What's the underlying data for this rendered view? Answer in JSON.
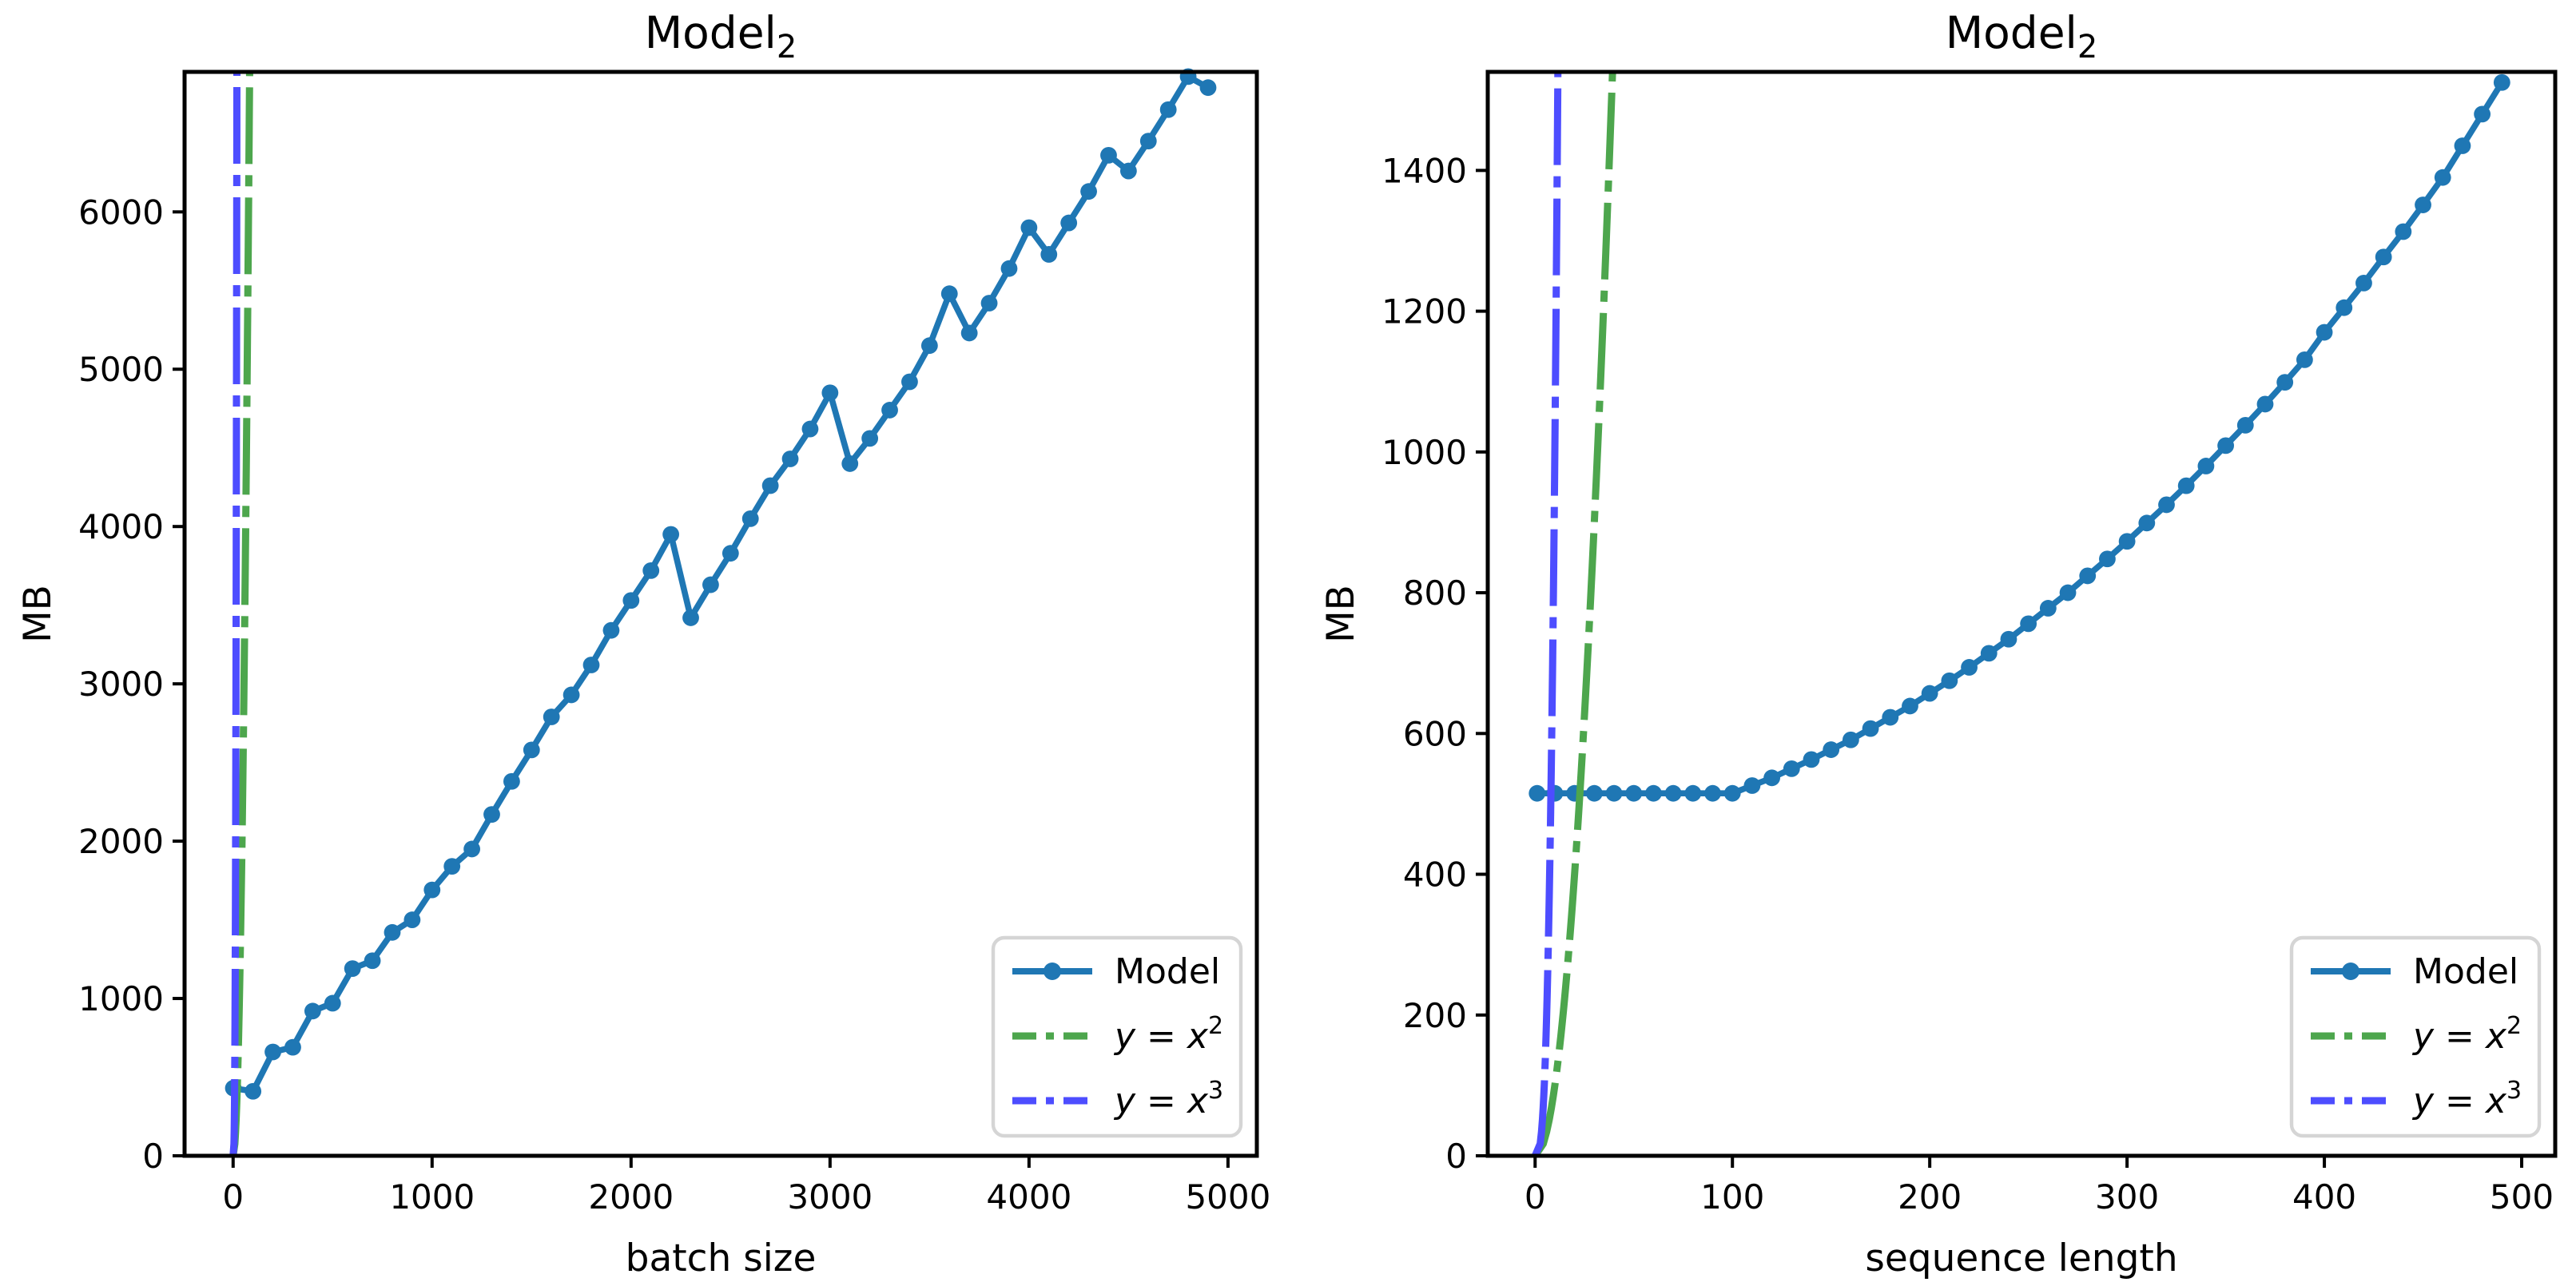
{
  "figure": {
    "background": "#ffffff",
    "description": "Two line charts of memory usage for Model 2"
  },
  "colors": {
    "model": "#1f77b4",
    "quadratic": "#4DA64D",
    "cubic": "#4D4DFF",
    "axis": "#000000",
    "legend_border": "#d5d5d5",
    "legend_bg": "#ffffff"
  },
  "chart_data": [
    {
      "type": "line",
      "title": {
        "main": "Model",
        "sub": "2"
      },
      "xlabel": "batch size",
      "ylabel": "MB",
      "xlim": [
        -244,
        5145
      ],
      "ylim": [
        0,
        6890
      ],
      "xticks": [
        0,
        1000,
        2000,
        3000,
        4000,
        5000
      ],
      "yticks": [
        0,
        1000,
        2000,
        3000,
        4000,
        5000,
        6000
      ],
      "grid": false,
      "legend_position": "lower right",
      "series": [
        {
          "name": "Model",
          "color_key": "model",
          "style": "solid-markers",
          "x": [
            1,
            100,
            200,
            300,
            400,
            500,
            600,
            700,
            800,
            900,
            1000,
            1100,
            1200,
            1300,
            1400,
            1500,
            1600,
            1700,
            1800,
            1900,
            2000,
            2100,
            2200,
            2300,
            2400,
            2500,
            2600,
            2700,
            2800,
            2900,
            3000,
            3100,
            3200,
            3300,
            3400,
            3500,
            3600,
            3700,
            3800,
            3900,
            4000,
            4100,
            4200,
            4300,
            4400,
            4500,
            4600,
            4700,
            4800,
            4900
          ],
          "y": [
            430,
            410,
            660,
            690,
            920,
            970,
            1190,
            1240,
            1420,
            1500,
            1690,
            1840,
            1950,
            2170,
            2380,
            2580,
            2790,
            2930,
            3120,
            3340,
            3530,
            3720,
            3950,
            3420,
            3630,
            3830,
            4050,
            4260,
            4430,
            4620,
            4850,
            4400,
            4560,
            4740,
            4920,
            5150,
            5480,
            5230,
            5420,
            5640,
            5900,
            5730,
            5930,
            6130,
            6360,
            6260,
            6450,
            6650,
            6860,
            6790
          ]
        },
        {
          "name": "y = x^2",
          "color_key": "quadratic",
          "style": "dashdot",
          "formula": "x^2"
        },
        {
          "name": "y = x^3",
          "color_key": "cubic",
          "style": "dashdot",
          "formula": "x^3"
        }
      ],
      "legend": {
        "entries": [
          {
            "label": "Model",
            "math": false,
            "color_key": "model",
            "style": "solid-markers"
          },
          {
            "label": "y = x²",
            "math": true,
            "lhs": "y",
            "eq": " = ",
            "rhs": "x",
            "exp": "2",
            "color_key": "quadratic",
            "style": "dashdot"
          },
          {
            "label": "y = x³",
            "math": true,
            "lhs": "y",
            "eq": " = ",
            "rhs": "x",
            "exp": "3",
            "color_key": "cubic",
            "style": "dashdot"
          }
        ]
      }
    },
    {
      "type": "line",
      "title": {
        "main": "Model",
        "sub": "2"
      },
      "xlabel": "sequence length",
      "ylabel": "MB",
      "xlim": [
        -24,
        517
      ],
      "ylim": [
        0,
        1540
      ],
      "xticks": [
        0,
        100,
        200,
        300,
        400,
        500
      ],
      "yticks": [
        0,
        200,
        400,
        600,
        800,
        1000,
        1200,
        1400
      ],
      "grid": false,
      "legend_position": "lower right",
      "series": [
        {
          "name": "Model",
          "color_key": "model",
          "style": "solid-markers",
          "x": [
            1,
            10,
            20,
            30,
            40,
            50,
            60,
            70,
            80,
            90,
            100,
            110,
            120,
            130,
            140,
            150,
            160,
            170,
            180,
            190,
            200,
            210,
            220,
            230,
            240,
            250,
            260,
            270,
            280,
            290,
            300,
            310,
            320,
            330,
            340,
            350,
            360,
            370,
            380,
            390,
            400,
            410,
            420,
            430,
            440,
            450,
            460,
            470,
            480,
            490
          ],
          "y": [
            515,
            515,
            515,
            515,
            515,
            515,
            515,
            515,
            515,
            515,
            515,
            526,
            537,
            550,
            563,
            577,
            591,
            607,
            623,
            639,
            657,
            675,
            694,
            714,
            734,
            756,
            778,
            800,
            824,
            848,
            873,
            899,
            925,
            952,
            980,
            1009,
            1038,
            1068,
            1099,
            1131,
            1170,
            1205,
            1240,
            1277,
            1313,
            1351,
            1390,
            1435,
            1480,
            1525
          ]
        },
        {
          "name": "y = x^2",
          "color_key": "quadratic",
          "style": "dashdot",
          "formula": "x^2"
        },
        {
          "name": "y = x^3",
          "color_key": "cubic",
          "style": "dashdot",
          "formula": "x^3"
        }
      ],
      "legend": {
        "entries": [
          {
            "label": "Model",
            "math": false,
            "color_key": "model",
            "style": "solid-markers"
          },
          {
            "label": "y = x²",
            "math": true,
            "lhs": "y",
            "eq": " = ",
            "rhs": "x",
            "exp": "2",
            "color_key": "quadratic",
            "style": "dashdot"
          },
          {
            "label": "y = x³",
            "math": true,
            "lhs": "y",
            "eq": " = ",
            "rhs": "x",
            "exp": "3",
            "color_key": "cubic",
            "style": "dashdot"
          }
        ]
      }
    }
  ]
}
